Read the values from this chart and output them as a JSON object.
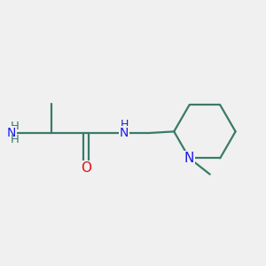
{
  "background_color": "#f0f0f0",
  "bond_color": "#3a7a6a",
  "bond_width": 1.6,
  "N_color": "#1a1aee",
  "O_color": "#dd1111",
  "NH2_H_color": "#3a7a6a",
  "label_fs": 9.5,
  "fig_width": 3.0,
  "fig_height": 3.0,
  "dpi": 100,
  "xlim": [
    0.5,
    9.5
  ],
  "ylim": [
    1.5,
    7.5
  ]
}
